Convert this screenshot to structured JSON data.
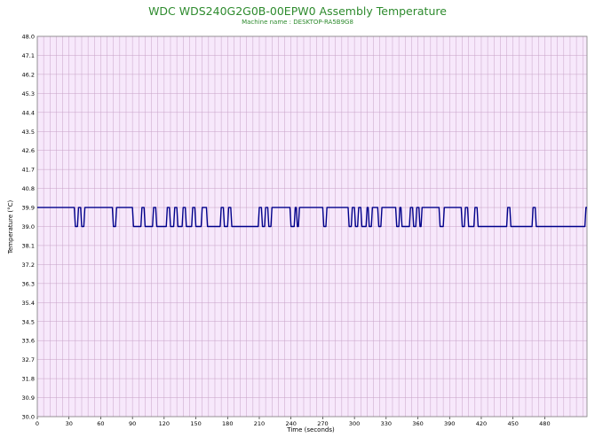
{
  "chart_data": {
    "type": "line",
    "title": "WDC WDS240G2G0B-00EPW0 Assembly Temperature",
    "subtitle": "Machine name : DESKTOP-RA5B9G8",
    "xlabel": "Time (seconds)",
    "ylabel": "Temperature (°C)",
    "xlim": [
      0,
      520
    ],
    "ylim": [
      30.0,
      48.0
    ],
    "x_ticks": [
      0,
      30,
      60,
      90,
      120,
      150,
      180,
      210,
      240,
      270,
      300,
      330,
      360,
      390,
      420,
      450,
      480
    ],
    "y_ticks": [
      "48.0",
      "47.1",
      "46.2",
      "45.3",
      "44.4",
      "43.5",
      "42.6",
      "41.7",
      "40.8",
      "39.9",
      "39.0",
      "38.1",
      "37.2",
      "36.3",
      "35.4",
      "34.5",
      "33.6",
      "32.7",
      "31.8",
      "30.9",
      "30.0"
    ],
    "grid": true,
    "background": "#f7e8fb",
    "grid_color": "#c7a2c7",
    "series": [
      {
        "color": "#00008b",
        "x": [
          0,
          35,
          36,
          38,
          39,
          41,
          42,
          44,
          45,
          71,
          72,
          74,
          75,
          90,
          91,
          98,
          99,
          101,
          102,
          109,
          110,
          112,
          113,
          122,
          123,
          125,
          126,
          129,
          130,
          132,
          133,
          137,
          138,
          140,
          141,
          146,
          147,
          149,
          150,
          155,
          156,
          160,
          161,
          173,
          174,
          176,
          177,
          180,
          181,
          183,
          184,
          209,
          210,
          212,
          213,
          215,
          216,
          218,
          219,
          221,
          222,
          239,
          240,
          243,
          244,
          245,
          246,
          247,
          248,
          270,
          271,
          273,
          274,
          294,
          295,
          297,
          298,
          300,
          301,
          303,
          304,
          306,
          307,
          311,
          312,
          313,
          314,
          316,
          317,
          322,
          323,
          325,
          326,
          339,
          340,
          342,
          343,
          344,
          345,
          352,
          353,
          355,
          356,
          358,
          359,
          361,
          362,
          363,
          364,
          380,
          381,
          384,
          385,
          401,
          402,
          404,
          405,
          407,
          408,
          413,
          414,
          416,
          417,
          444,
          445,
          447,
          448,
          468,
          469,
          471,
          472,
          518,
          519,
          520
        ],
        "y": [
          39.9,
          39.9,
          39.0,
          39.0,
          39.9,
          39.9,
          39.0,
          39.0,
          39.9,
          39.9,
          39.0,
          39.0,
          39.9,
          39.9,
          39.0,
          39.0,
          39.9,
          39.9,
          39.0,
          39.0,
          39.9,
          39.9,
          39.0,
          39.0,
          39.9,
          39.9,
          39.0,
          39.0,
          39.9,
          39.9,
          39.0,
          39.0,
          39.9,
          39.9,
          39.0,
          39.0,
          39.9,
          39.9,
          39.0,
          39.0,
          39.9,
          39.9,
          39.0,
          39.0,
          39.9,
          39.9,
          39.0,
          39.0,
          39.9,
          39.9,
          39.0,
          39.0,
          39.9,
          39.9,
          39.0,
          39.0,
          39.9,
          39.9,
          39.0,
          39.0,
          39.9,
          39.9,
          39.0,
          39.0,
          39.9,
          39.9,
          39.0,
          39.0,
          39.9,
          39.9,
          39.0,
          39.0,
          39.9,
          39.9,
          39.0,
          39.0,
          39.9,
          39.9,
          39.0,
          39.0,
          39.9,
          39.9,
          39.0,
          39.0,
          39.9,
          39.9,
          39.0,
          39.0,
          39.9,
          39.9,
          39.0,
          39.0,
          39.9,
          39.9,
          39.0,
          39.0,
          39.9,
          39.9,
          39.0,
          39.0,
          39.9,
          39.9,
          39.0,
          39.0,
          39.9,
          39.9,
          39.0,
          39.0,
          39.9,
          39.9,
          39.0,
          39.0,
          39.9,
          39.9,
          39.0,
          39.0,
          39.9,
          39.9,
          39.0,
          39.0,
          39.9,
          39.9,
          39.0,
          39.0,
          39.9,
          39.9,
          39.0,
          39.0,
          39.9,
          39.9,
          39.0,
          39.0,
          39.9,
          39.9
        ]
      }
    ]
  }
}
